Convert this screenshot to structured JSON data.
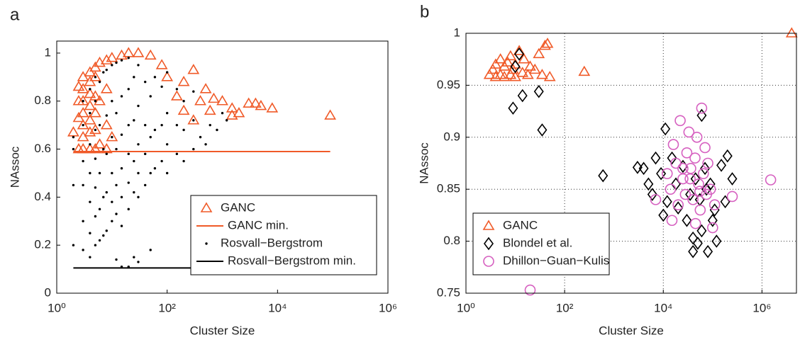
{
  "chart_data": [
    {
      "type": "scatter",
      "label": "a",
      "xlabel": "Cluster Size",
      "ylabel": "NAssoc",
      "xscale": "log",
      "xlim": [
        1,
        1000000
      ],
      "xticks": [
        {
          "value": 1,
          "label": "10⁰"
        },
        {
          "value": 100,
          "label": "10²"
        },
        {
          "value": 10000,
          "label": "10⁴"
        },
        {
          "value": 1000000,
          "label": "10⁶"
        }
      ],
      "ylim": [
        0,
        1.05
      ],
      "yticks": [
        0,
        0.2,
        0.4,
        0.6,
        0.8,
        1
      ],
      "grid": false,
      "legend": "lower right",
      "series": [
        {
          "name": "GANC",
          "type": "scatter",
          "marker": "triangle",
          "color": "#f05a28",
          "x": [
            2,
            2.5,
            2.5,
            2.5,
            2.5,
            3,
            3,
            3,
            3,
            3,
            3,
            3,
            4,
            4,
            4,
            4,
            4,
            4,
            4,
            5,
            5,
            5,
            5,
            5,
            5,
            6,
            6,
            6,
            8,
            8,
            8,
            8,
            10,
            10,
            15,
            20,
            30,
            50,
            80,
            100,
            150,
            200,
            300,
            400,
            500,
            700,
            1000,
            1500,
            2000,
            3000,
            4000,
            5000,
            8000,
            90000,
            1500,
            300,
            200,
            600
          ],
          "values": [
            0.67,
            0.6,
            0.73,
            0.8,
            0.86,
            0.6,
            0.65,
            0.7,
            0.75,
            0.8,
            0.85,
            0.9,
            0.6,
            0.67,
            0.72,
            0.78,
            0.83,
            0.88,
            0.92,
            0.6,
            0.68,
            0.75,
            0.82,
            0.9,
            0.94,
            0.62,
            0.8,
            0.96,
            0.6,
            0.7,
            0.85,
            0.97,
            0.65,
            0.98,
            0.99,
            1.0,
            1.0,
            0.99,
            0.95,
            0.9,
            0.82,
            0.76,
            0.72,
            0.8,
            0.85,
            0.81,
            0.8,
            0.77,
            0.75,
            0.79,
            0.79,
            0.78,
            0.77,
            0.74,
            0.74,
            0.93,
            0.88,
            0.76
          ]
        },
        {
          "name": "GANC min.",
          "type": "line",
          "color": "#f05a28",
          "x": [
            2,
            90000
          ],
          "values": [
            0.59,
            0.59
          ]
        },
        {
          "name": "Rosvall−Bergstrom",
          "type": "scatter",
          "marker": "dot",
          "color": "#000000",
          "x": [
            2,
            2,
            2,
            2,
            3,
            3,
            3,
            3,
            3,
            3,
            4,
            4,
            4,
            4,
            4,
            4,
            4,
            5,
            5,
            5,
            5,
            5,
            5,
            5,
            6,
            6,
            6,
            6,
            6,
            7,
            7,
            7,
            7,
            8,
            8,
            8,
            8,
            8,
            10,
            10,
            10,
            10,
            10,
            10,
            12,
            12,
            12,
            12,
            12,
            15,
            15,
            15,
            15,
            15,
            15,
            20,
            20,
            20,
            20,
            20,
            20,
            25,
            25,
            25,
            25,
            30,
            30,
            30,
            30,
            30,
            40,
            40,
            40,
            40,
            50,
            50,
            50,
            60,
            60,
            60,
            80,
            80,
            80,
            100,
            100,
            100,
            100,
            150,
            150,
            150,
            200,
            200,
            200,
            300,
            300,
            300,
            400,
            500,
            600,
            800,
            1000,
            1200,
            20,
            25,
            30,
            15,
            12,
            50,
            700
          ],
          "values": [
            0.2,
            0.45,
            0.6,
            0.65,
            0.18,
            0.3,
            0.45,
            0.55,
            0.7,
            0.8,
            0.15,
            0.25,
            0.38,
            0.5,
            0.62,
            0.75,
            0.85,
            0.2,
            0.32,
            0.44,
            0.56,
            0.68,
            0.8,
            0.9,
            0.22,
            0.35,
            0.5,
            0.7,
            0.88,
            0.24,
            0.4,
            0.6,
            0.92,
            0.26,
            0.42,
            0.58,
            0.74,
            0.93,
            0.3,
            0.38,
            0.5,
            0.65,
            0.8,
            0.95,
            0.33,
            0.45,
            0.6,
            0.75,
            0.96,
            0.28,
            0.4,
            0.52,
            0.66,
            0.82,
            0.97,
            0.35,
            0.46,
            0.58,
            0.7,
            0.85,
            0.98,
            0.42,
            0.55,
            0.72,
            0.9,
            0.4,
            0.5,
            0.62,
            0.78,
            0.95,
            0.45,
            0.58,
            0.7,
            0.88,
            0.5,
            0.65,
            0.82,
            0.52,
            0.68,
            0.9,
            0.55,
            0.7,
            0.86,
            0.5,
            0.62,
            0.75,
            0.92,
            0.58,
            0.7,
            0.85,
            0.55,
            0.68,
            0.8,
            0.6,
            0.72,
            0.84,
            0.65,
            0.62,
            0.7,
            0.68,
            0.75,
            0.72,
            0.11,
            0.15,
            0.13,
            0.11,
            0.14,
            0.18,
            0.1
          ]
        },
        {
          "name": "Rosvall−Bergstrom min.",
          "type": "line",
          "color": "#000000",
          "x": [
            2,
            1500
          ],
          "values": [
            0.105,
            0.105
          ]
        }
      ]
    },
    {
      "type": "scatter",
      "label": "b",
      "xlabel": "Cluster Size",
      "ylabel": "NAssoc",
      "xscale": "log",
      "xlim": [
        1,
        5000000
      ],
      "xticks": [
        {
          "value": 1,
          "label": "10⁰"
        },
        {
          "value": 100,
          "label": "10²"
        },
        {
          "value": 10000,
          "label": "10⁴"
        },
        {
          "value": 1000000,
          "label": "10⁶"
        }
      ],
      "ylim": [
        0.75,
        1
      ],
      "yticks": [
        0.75,
        0.8,
        0.85,
        0.9,
        0.95,
        1
      ],
      "grid": true,
      "legend": "lower left",
      "series": [
        {
          "name": "GANC",
          "type": "scatter",
          "marker": "triangle",
          "color": "#f05a28",
          "x": [
            3,
            3.5,
            4,
            4,
            5,
            5,
            6,
            6,
            7,
            8,
            8,
            9,
            10,
            10,
            12,
            14,
            15,
            18,
            20,
            25,
            30,
            35,
            40,
            45,
            50,
            250,
            4000000
          ],
          "values": [
            0.96,
            0.965,
            0.958,
            0.97,
            0.96,
            0.975,
            0.958,
            0.968,
            0.972,
            0.96,
            0.978,
            0.965,
            0.958,
            0.97,
            0.983,
            0.962,
            0.975,
            0.96,
            0.968,
            0.965,
            0.98,
            0.96,
            0.988,
            0.99,
            0.958,
            0.963,
            1.0
          ]
        },
        {
          "name": "Blondel et al.",
          "type": "scatter",
          "marker": "diamond",
          "color": "#000000",
          "x": [
            9,
            10,
            12,
            14,
            30,
            35,
            600,
            3000,
            4000,
            5000,
            6000,
            7000,
            9000,
            10000,
            11000,
            12000,
            15000,
            18000,
            20000,
            25000,
            30000,
            35000,
            40000,
            45000,
            50000,
            55000,
            60000,
            70000,
            80000,
            90000,
            100000,
            110000,
            120000,
            150000,
            180000,
            200000,
            250000,
            40000,
            60000,
            75000
          ],
          "values": [
            0.928,
            0.968,
            0.98,
            0.94,
            0.944,
            0.907,
            0.863,
            0.871,
            0.87,
            0.855,
            0.845,
            0.88,
            0.865,
            0.825,
            0.908,
            0.838,
            0.88,
            0.855,
            0.832,
            0.872,
            0.82,
            0.845,
            0.803,
            0.86,
            0.798,
            0.84,
            0.81,
            0.87,
            0.79,
            0.855,
            0.82,
            0.83,
            0.8,
            0.873,
            0.838,
            0.882,
            0.86,
            0.79,
            0.921,
            0.85
          ]
        },
        {
          "name": "Dhillon−Guan−Kulis",
          "type": "scatter",
          "marker": "circle",
          "color": "#d660c0",
          "x": [
            20,
            7000,
            12000,
            14000,
            16000,
            18000,
            20000,
            22000,
            25000,
            28000,
            30000,
            33000,
            36000,
            40000,
            44000,
            48000,
            52000,
            56000,
            60000,
            65000,
            70000,
            75000,
            80000,
            90000,
            100000,
            110000,
            15000,
            25000,
            35000,
            45000,
            55000,
            250000,
            1500000
          ],
          "values": [
            0.753,
            0.84,
            0.865,
            0.85,
            0.893,
            0.875,
            0.835,
            0.916,
            0.86,
            0.845,
            0.885,
            0.905,
            0.87,
            0.84,
            0.88,
            0.9,
            0.855,
            0.83,
            0.928,
            0.865,
            0.89,
            0.845,
            0.875,
            0.85,
            0.813,
            0.835,
            0.82,
            0.87,
            0.86,
            0.817,
            0.848,
            0.843,
            0.859
          ]
        }
      ]
    }
  ]
}
